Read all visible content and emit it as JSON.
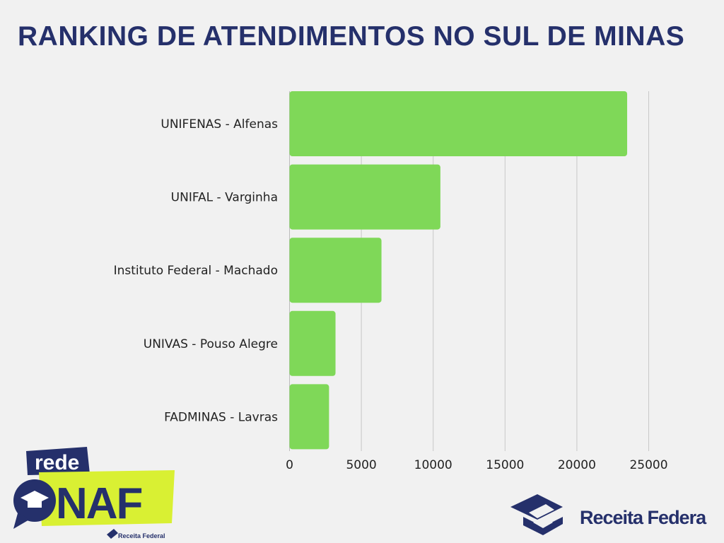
{
  "title": "RANKING DE ATENDIMENTOS NO SUL DE MINAS",
  "colors": {
    "bar": "#7fd858",
    "title": "#25306b",
    "grid": "#c8c8c8",
    "logo_navy": "#25306b",
    "logo_lime": "#d9f033"
  },
  "chart_data": {
    "type": "bar",
    "orientation": "horizontal",
    "title": "RANKING DE ATENDIMENTOS NO SUL DE MINAS",
    "categories": [
      "UNIFENAS - Alfenas",
      "UNIFAL - Varginha",
      "Instituto Federal - Machado",
      "UNIVAS - Pouso Alegre",
      "FADMINAS - Lavras"
    ],
    "values": [
      23500,
      10500,
      6400,
      3200,
      2750
    ],
    "xlim": [
      0,
      25000
    ],
    "xticks": [
      "0",
      "5000",
      "10000",
      "15000",
      "20000",
      "25000"
    ],
    "grid": true,
    "xlabel": "",
    "ylabel": ""
  },
  "logos": {
    "onaf_top": "rede",
    "onaf_main": "ONAF",
    "onaf_sub": "Receita Federal",
    "receita": "Receita Federal"
  }
}
